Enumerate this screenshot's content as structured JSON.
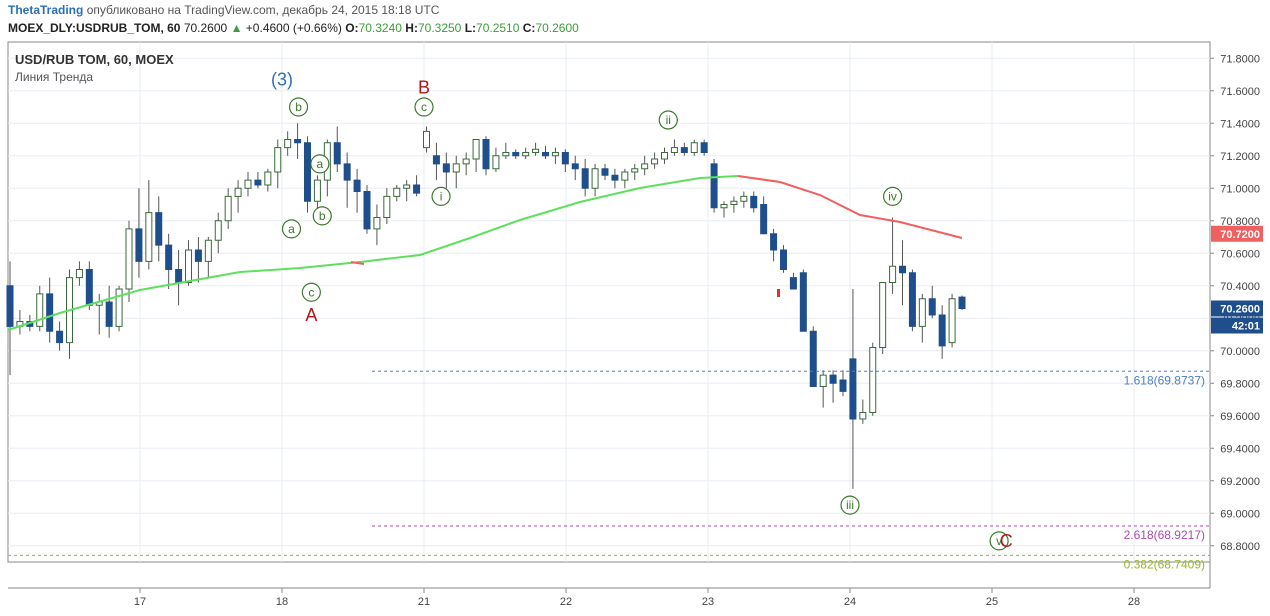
{
  "header": {
    "author": "ThetaTrading",
    "published": "опубликовано на TradingView.com, декабрь 24, 2015 18:18 UTC",
    "ticker": "MOEX_DLY:USDRUB_TOM, 60",
    "last": "70.2600",
    "change": "+0.4600 (+0.66%)",
    "o_label": "O:",
    "o": "70.3240",
    "h_label": "H:",
    "h": "70.3250",
    "l_label": "L:",
    "l": "70.2510",
    "c_label": "C:",
    "c": "70.2600"
  },
  "chart_title": "USD/RUB TOM, 60, MOEX",
  "indicator_label": "Линия Тренда",
  "colors": {
    "up_fill": "#ffffff",
    "down_fill": "#1f4e8c",
    "green_line": "#5ee05e",
    "red_line": "#f06060",
    "grid": "#e8eef4",
    "wave_green": "#3a7a2a",
    "wave_red": "#b01818",
    "wave_blue": "#2a6fb8"
  },
  "chart_data": {
    "type": "candlestick",
    "y_axis": {
      "min": 68.7,
      "max": 71.9,
      "ticks": [
        "71.8000",
        "71.6000",
        "71.4000",
        "71.2000",
        "71.0000",
        "70.8000",
        "70.6000",
        "70.4000",
        "70.2000",
        "70.0000",
        "69.8000",
        "69.6000",
        "69.4000",
        "69.2000",
        "69.0000",
        "68.8000"
      ]
    },
    "x_axis": {
      "ticks": [
        "17",
        "18",
        "21",
        "22",
        "23",
        "24",
        "25",
        "28"
      ]
    },
    "price_labels": {
      "current": "70.2600",
      "countdown": "42:01",
      "trend": "70.7200"
    },
    "candles": [
      [
        70.4,
        70.55,
        69.85,
        70.15
      ],
      [
        70.15,
        70.25,
        70.1,
        70.18
      ],
      [
        70.18,
        70.22,
        70.12,
        70.15
      ],
      [
        70.15,
        70.4,
        70.12,
        70.35
      ],
      [
        70.35,
        70.45,
        70.05,
        70.12
      ],
      [
        70.12,
        70.18,
        70.0,
        70.05
      ],
      [
        70.05,
        70.5,
        69.95,
        70.45
      ],
      [
        70.45,
        70.55,
        70.4,
        70.5
      ],
      [
        70.5,
        70.55,
        70.25,
        70.28
      ],
      [
        70.28,
        70.35,
        70.1,
        70.3
      ],
      [
        70.3,
        70.4,
        70.08,
        70.15
      ],
      [
        70.15,
        70.4,
        70.12,
        70.38
      ],
      [
        70.38,
        70.8,
        70.3,
        70.75
      ],
      [
        70.75,
        71.0,
        70.45,
        70.55
      ],
      [
        70.55,
        71.05,
        70.5,
        70.85
      ],
      [
        70.85,
        70.95,
        70.55,
        70.65
      ],
      [
        70.65,
        70.72,
        70.38,
        70.5
      ],
      [
        70.5,
        70.62,
        70.28,
        70.42
      ],
      [
        70.42,
        70.68,
        70.4,
        70.62
      ],
      [
        70.62,
        70.7,
        70.42,
        70.55
      ],
      [
        70.55,
        70.7,
        70.45,
        70.68
      ],
      [
        70.68,
        70.85,
        70.6,
        70.8
      ],
      [
        70.8,
        71.0,
        70.75,
        70.95
      ],
      [
        70.95,
        71.05,
        70.85,
        71.0
      ],
      [
        71.0,
        71.1,
        70.95,
        71.05
      ],
      [
        71.05,
        71.1,
        71.0,
        71.02
      ],
      [
        71.02,
        71.12,
        70.98,
        71.1
      ],
      [
        71.1,
        71.3,
        71.0,
        71.25
      ],
      [
        71.25,
        71.35,
        71.2,
        71.3
      ],
      [
        71.3,
        71.4,
        71.18,
        71.28
      ],
      [
        71.28,
        71.32,
        70.85,
        70.92
      ],
      [
        70.92,
        71.08,
        70.8,
        71.05
      ],
      [
        71.05,
        71.3,
        70.95,
        71.28
      ],
      [
        71.28,
        71.38,
        71.1,
        71.15
      ],
      [
        71.15,
        71.22,
        70.88,
        71.05
      ],
      [
        71.05,
        71.12,
        70.85,
        70.98
      ],
      [
        70.98,
        71.02,
        70.72,
        70.75
      ],
      [
        70.75,
        70.9,
        70.65,
        70.82
      ],
      [
        70.82,
        71.0,
        70.78,
        70.95
      ],
      [
        70.95,
        71.02,
        70.92,
        71.0
      ],
      [
        71.0,
        71.05,
        70.92,
        71.02
      ],
      [
        71.02,
        71.08,
        70.95,
        70.97
      ],
      [
        71.25,
        71.38,
        71.22,
        71.35
      ],
      [
        71.2,
        71.28,
        71.05,
        71.15
      ],
      [
        71.15,
        71.22,
        71.0,
        71.1
      ],
      [
        71.1,
        71.2,
        71.0,
        71.15
      ],
      [
        71.15,
        71.22,
        71.08,
        71.18
      ],
      [
        71.18,
        71.3,
        71.1,
        71.3
      ],
      [
        71.3,
        71.32,
        71.08,
        71.12
      ],
      [
        71.12,
        71.25,
        71.1,
        71.2
      ],
      [
        71.2,
        71.28,
        71.18,
        71.22
      ],
      [
        71.22,
        71.24,
        71.18,
        71.2
      ],
      [
        71.2,
        71.25,
        71.18,
        71.22
      ],
      [
        71.22,
        71.28,
        71.2,
        71.24
      ],
      [
        71.22,
        71.26,
        71.18,
        71.2
      ],
      [
        71.2,
        71.25,
        71.15,
        71.22
      ],
      [
        71.22,
        71.24,
        71.1,
        71.15
      ],
      [
        71.15,
        71.2,
        71.05,
        71.12
      ],
      [
        71.12,
        71.18,
        70.95,
        71.0
      ],
      [
        71.0,
        71.15,
        70.95,
        71.12
      ],
      [
        71.12,
        71.15,
        71.05,
        71.08
      ],
      [
        71.08,
        71.12,
        71.0,
        71.05
      ],
      [
        71.05,
        71.12,
        71.0,
        71.1
      ],
      [
        71.1,
        71.15,
        71.05,
        71.12
      ],
      [
        71.12,
        71.2,
        71.08,
        71.15
      ],
      [
        71.15,
        71.22,
        71.12,
        71.18
      ],
      [
        71.18,
        71.25,
        71.15,
        71.22
      ],
      [
        71.22,
        71.3,
        71.2,
        71.25
      ],
      [
        71.25,
        71.28,
        71.2,
        71.22
      ],
      [
        71.22,
        71.3,
        71.2,
        71.28
      ],
      [
        71.28,
        71.3,
        71.2,
        71.22
      ],
      [
        71.15,
        71.18,
        70.85,
        70.88
      ],
      [
        70.88,
        70.92,
        70.82,
        70.9
      ],
      [
        70.9,
        70.95,
        70.85,
        70.92
      ],
      [
        70.92,
        70.98,
        70.88,
        70.95
      ],
      [
        70.95,
        70.98,
        70.85,
        70.88
      ],
      [
        70.9,
        70.95,
        70.75,
        70.72
      ],
      [
        70.72,
        70.75,
        70.55,
        70.62
      ],
      [
        70.62,
        70.65,
        70.48,
        70.5
      ],
      [
        70.45,
        70.48,
        70.38,
        70.38
      ],
      [
        70.48,
        70.5,
        70.15,
        70.12
      ],
      [
        70.12,
        70.15,
        69.8,
        69.78
      ],
      [
        69.78,
        69.88,
        69.65,
        69.85
      ],
      [
        69.85,
        69.88,
        69.68,
        69.8
      ],
      [
        69.82,
        69.88,
        69.72,
        69.75
      ],
      [
        69.95,
        70.38,
        69.15,
        69.58
      ],
      [
        69.58,
        69.7,
        69.55,
        69.62
      ],
      [
        69.62,
        70.05,
        69.6,
        70.02
      ],
      [
        70.02,
        70.42,
        69.98,
        70.42
      ],
      [
        70.42,
        70.82,
        70.35,
        70.52
      ],
      [
        70.52,
        70.68,
        70.28,
        70.48
      ],
      [
        70.48,
        70.5,
        70.12,
        70.15
      ],
      [
        70.15,
        70.35,
        70.05,
        70.32
      ],
      [
        70.32,
        70.4,
        70.2,
        70.22
      ],
      [
        70.22,
        70.28,
        69.95,
        70.03
      ],
      [
        70.05,
        70.35,
        70.02,
        70.32
      ],
      [
        70.33,
        70.34,
        70.25,
        70.26
      ]
    ],
    "wave_labels": [
      {
        "text": "(3)",
        "x": 18.0,
        "y": 71.67,
        "style": "blue"
      },
      {
        "text": "b",
        "x": 18.35,
        "y": 71.5,
        "style": "circle-green"
      },
      {
        "text": "a",
        "x": 18.2,
        "y": 70.75,
        "style": "circle-green"
      },
      {
        "text": "a",
        "x": 18.8,
        "y": 71.15,
        "style": "circle-green"
      },
      {
        "text": "b",
        "x": 18.85,
        "y": 70.83,
        "style": "circle-green"
      },
      {
        "text": "c",
        "x": 18.62,
        "y": 70.36,
        "style": "circle-green"
      },
      {
        "text": "A",
        "x": 18.62,
        "y": 70.22,
        "style": "red"
      },
      {
        "text": "B",
        "x": 21.0,
        "y": 71.62,
        "style": "red"
      },
      {
        "text": "c",
        "x": 21.0,
        "y": 71.5,
        "style": "circle-green"
      },
      {
        "text": "i",
        "x": 21.12,
        "y": 70.95,
        "style": "circle-green"
      },
      {
        "text": "ii",
        "x": 22.72,
        "y": 71.42,
        "style": "circle-green"
      },
      {
        "text": "iii",
        "x": 24.0,
        "y": 69.05,
        "style": "circle-green"
      },
      {
        "text": "iv",
        "x": 24.3,
        "y": 70.95,
        "style": "circle-green"
      },
      {
        "text": "v",
        "x": 25.15,
        "y": 68.83,
        "style": "circle-green"
      },
      {
        "text": "C",
        "x": 25.3,
        "y": 68.83,
        "style": "red"
      }
    ],
    "levels": [
      {
        "label": "1.618(69.8737)",
        "value": 69.8737,
        "color": "#4a7fc8"
      },
      {
        "label": "2.618(68.9217)",
        "value": 68.9217,
        "color": "#b04ab0"
      },
      {
        "label": "0.382(68.7409)",
        "value": 68.7409,
        "color": "#9ab82a"
      }
    ]
  }
}
